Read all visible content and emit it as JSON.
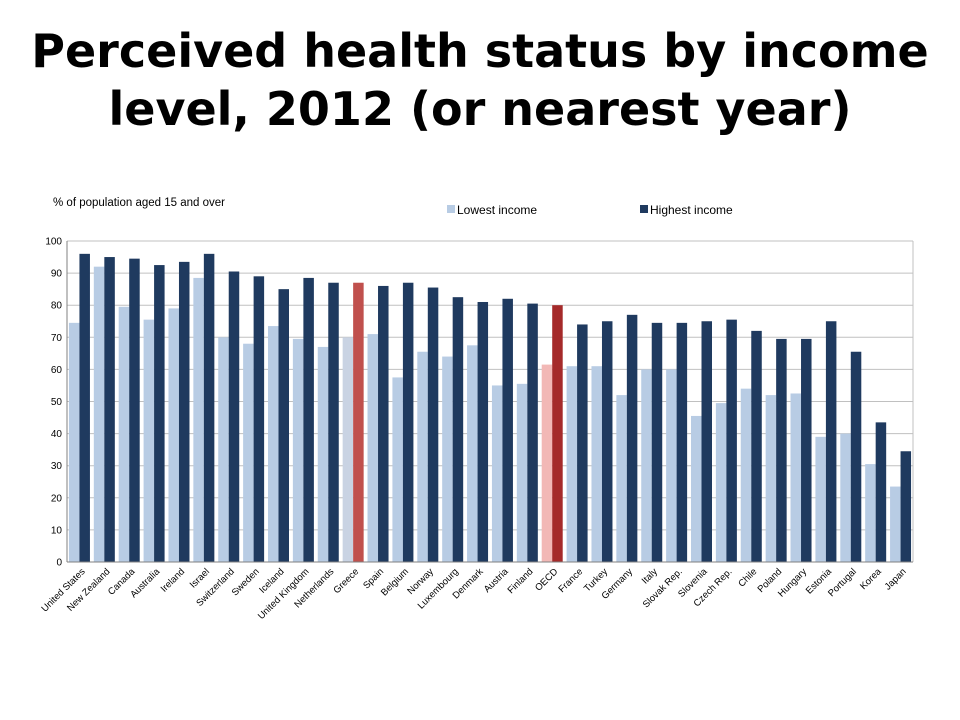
{
  "slide": {
    "title_line1": "Perceived health status by income",
    "title_line2": "level, 2012 (or nearest year)"
  },
  "colors": {
    "lowest": "#b8cce4",
    "highest": "#1f3a5f",
    "greece_lowest": "#c9d3e3",
    "greece_highest": "#c0504d",
    "oecd_lowest": "#f2b8b6",
    "oecd_highest": "#a52a2a",
    "gridline": "#c0c0c0"
  },
  "chart_data": {
    "type": "bar",
    "unit_label": "% of population aged 15 and over",
    "ylim": [
      0,
      100
    ],
    "yticks": [
      0,
      10,
      20,
      30,
      40,
      50,
      60,
      70,
      80,
      90,
      100
    ],
    "grid": true,
    "legend_position": "top-center",
    "categories": [
      "United States",
      "New Zealand",
      "Canada",
      "Australia",
      "Ireland",
      "Israel",
      "Switzerland",
      "Sweden",
      "Iceland",
      "United Kingdom",
      "Netherlands",
      "Greece",
      "Spain",
      "Belgium",
      "Norway",
      "Luxembourg",
      "Denmark",
      "Austria",
      "Finland",
      "OECD",
      "France",
      "Turkey",
      "Germany",
      "Italy",
      "Slovak Rep.",
      "Slovenia",
      "Czech Rep.",
      "Chile",
      "Poland",
      "Hungary",
      "Estonia",
      "Portugal",
      "Korea",
      "Japan"
    ],
    "series": [
      {
        "name": "Lowest income",
        "values": [
          74.5,
          92,
          79.5,
          75.5,
          79,
          88.5,
          70,
          68,
          73.5,
          69.5,
          67,
          70,
          71,
          57.5,
          65.5,
          64,
          67.5,
          55,
          55.5,
          61.5,
          61,
          61,
          52,
          60,
          60,
          45.5,
          49.5,
          54,
          52,
          52.5,
          39,
          40,
          30.5,
          23.5
        ]
      },
      {
        "name": "Highest income",
        "values": [
          96,
          95,
          94.5,
          92.5,
          93.5,
          96,
          90.5,
          89,
          85,
          88.5,
          87,
          87,
          86,
          87,
          85.5,
          82.5,
          81,
          82,
          80.5,
          80,
          74,
          75,
          77,
          74.5,
          74.5,
          75,
          75.5,
          72,
          69.5,
          69.5,
          75,
          65.5,
          43.5,
          34.5
        ]
      }
    ]
  }
}
